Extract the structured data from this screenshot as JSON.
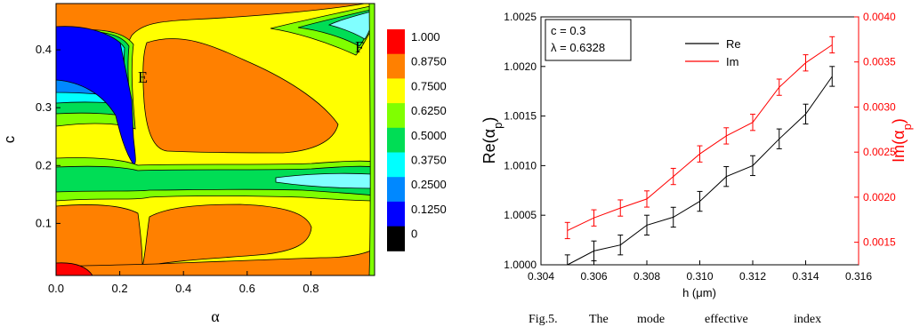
{
  "chart_data": [
    {
      "type": "heatmap",
      "xlabel": "α",
      "ylabel": "c",
      "xlim": [
        0.0,
        1.0
      ],
      "ylim": [
        0.01,
        0.48
      ],
      "x_ticks": [
        "0.0",
        "0.2",
        "0.4",
        "0.6",
        "0.8"
      ],
      "y_ticks": [
        "0.1",
        "0.2",
        "0.3",
        "0.4"
      ],
      "colorbar_levels": [
        "1.000",
        "0.8750",
        "0.7500",
        "0.6250",
        "0.5000",
        "0.3750",
        "0.2500",
        "0.1250",
        "0"
      ],
      "colorbar_colors": [
        "#ff0000",
        "#ff8000",
        "#ffff00",
        "#80ff00",
        "#00dd55",
        "#00ffff",
        "#0088ff",
        "#0000ff",
        "#000000"
      ],
      "annotations": [
        "E",
        "F"
      ]
    },
    {
      "type": "line",
      "xlabel": "h (μm)",
      "ylabel_left": "Re(α",
      "ylabel_left_sub": "p",
      "ylabel_right": "Im(α",
      "ylabel_right_sub": "p",
      "xlim": [
        0.304,
        0.316
      ],
      "ylim_left": [
        1.0,
        1.0025
      ],
      "ylim_right": [
        0.00125,
        0.004
      ],
      "x_ticks": [
        "0.304",
        "0.306",
        "0.308",
        "0.310",
        "0.312",
        "0.314",
        "0.316"
      ],
      "y_ticks_left": [
        "1.0000",
        "1.0005",
        "1.0010",
        "1.0015",
        "1.0020",
        "1.0025"
      ],
      "y_ticks_right": [
        "0.0015",
        "0.0020",
        "0.0025",
        "0.0030",
        "0.0035",
        "0.0040"
      ],
      "infobox": [
        "c = 0.3",
        "λ = 0.6328"
      ],
      "x": [
        0.305,
        0.306,
        0.307,
        0.308,
        0.309,
        0.31,
        0.311,
        0.312,
        0.313,
        0.314,
        0.315
      ],
      "series": [
        {
          "name": "Re",
          "axis": "left",
          "color": "#000000",
          "values": [
            1.0,
            1.00014,
            1.0002,
            1.0004,
            1.00048,
            1.00064,
            1.00089,
            1.001,
            1.00127,
            1.00152,
            1.0019
          ],
          "error": 0.0001
        },
        {
          "name": "Im",
          "axis": "right",
          "color": "#ff0000",
          "values": [
            0.00163,
            0.00177,
            0.00188,
            0.00198,
            0.00223,
            0.00248,
            0.00268,
            0.00283,
            0.00322,
            0.00349,
            0.00369
          ],
          "error": 9e-05
        }
      ]
    }
  ],
  "caption": [
    "Fig.5.",
    "The",
    "mode",
    "effective",
    "index"
  ]
}
